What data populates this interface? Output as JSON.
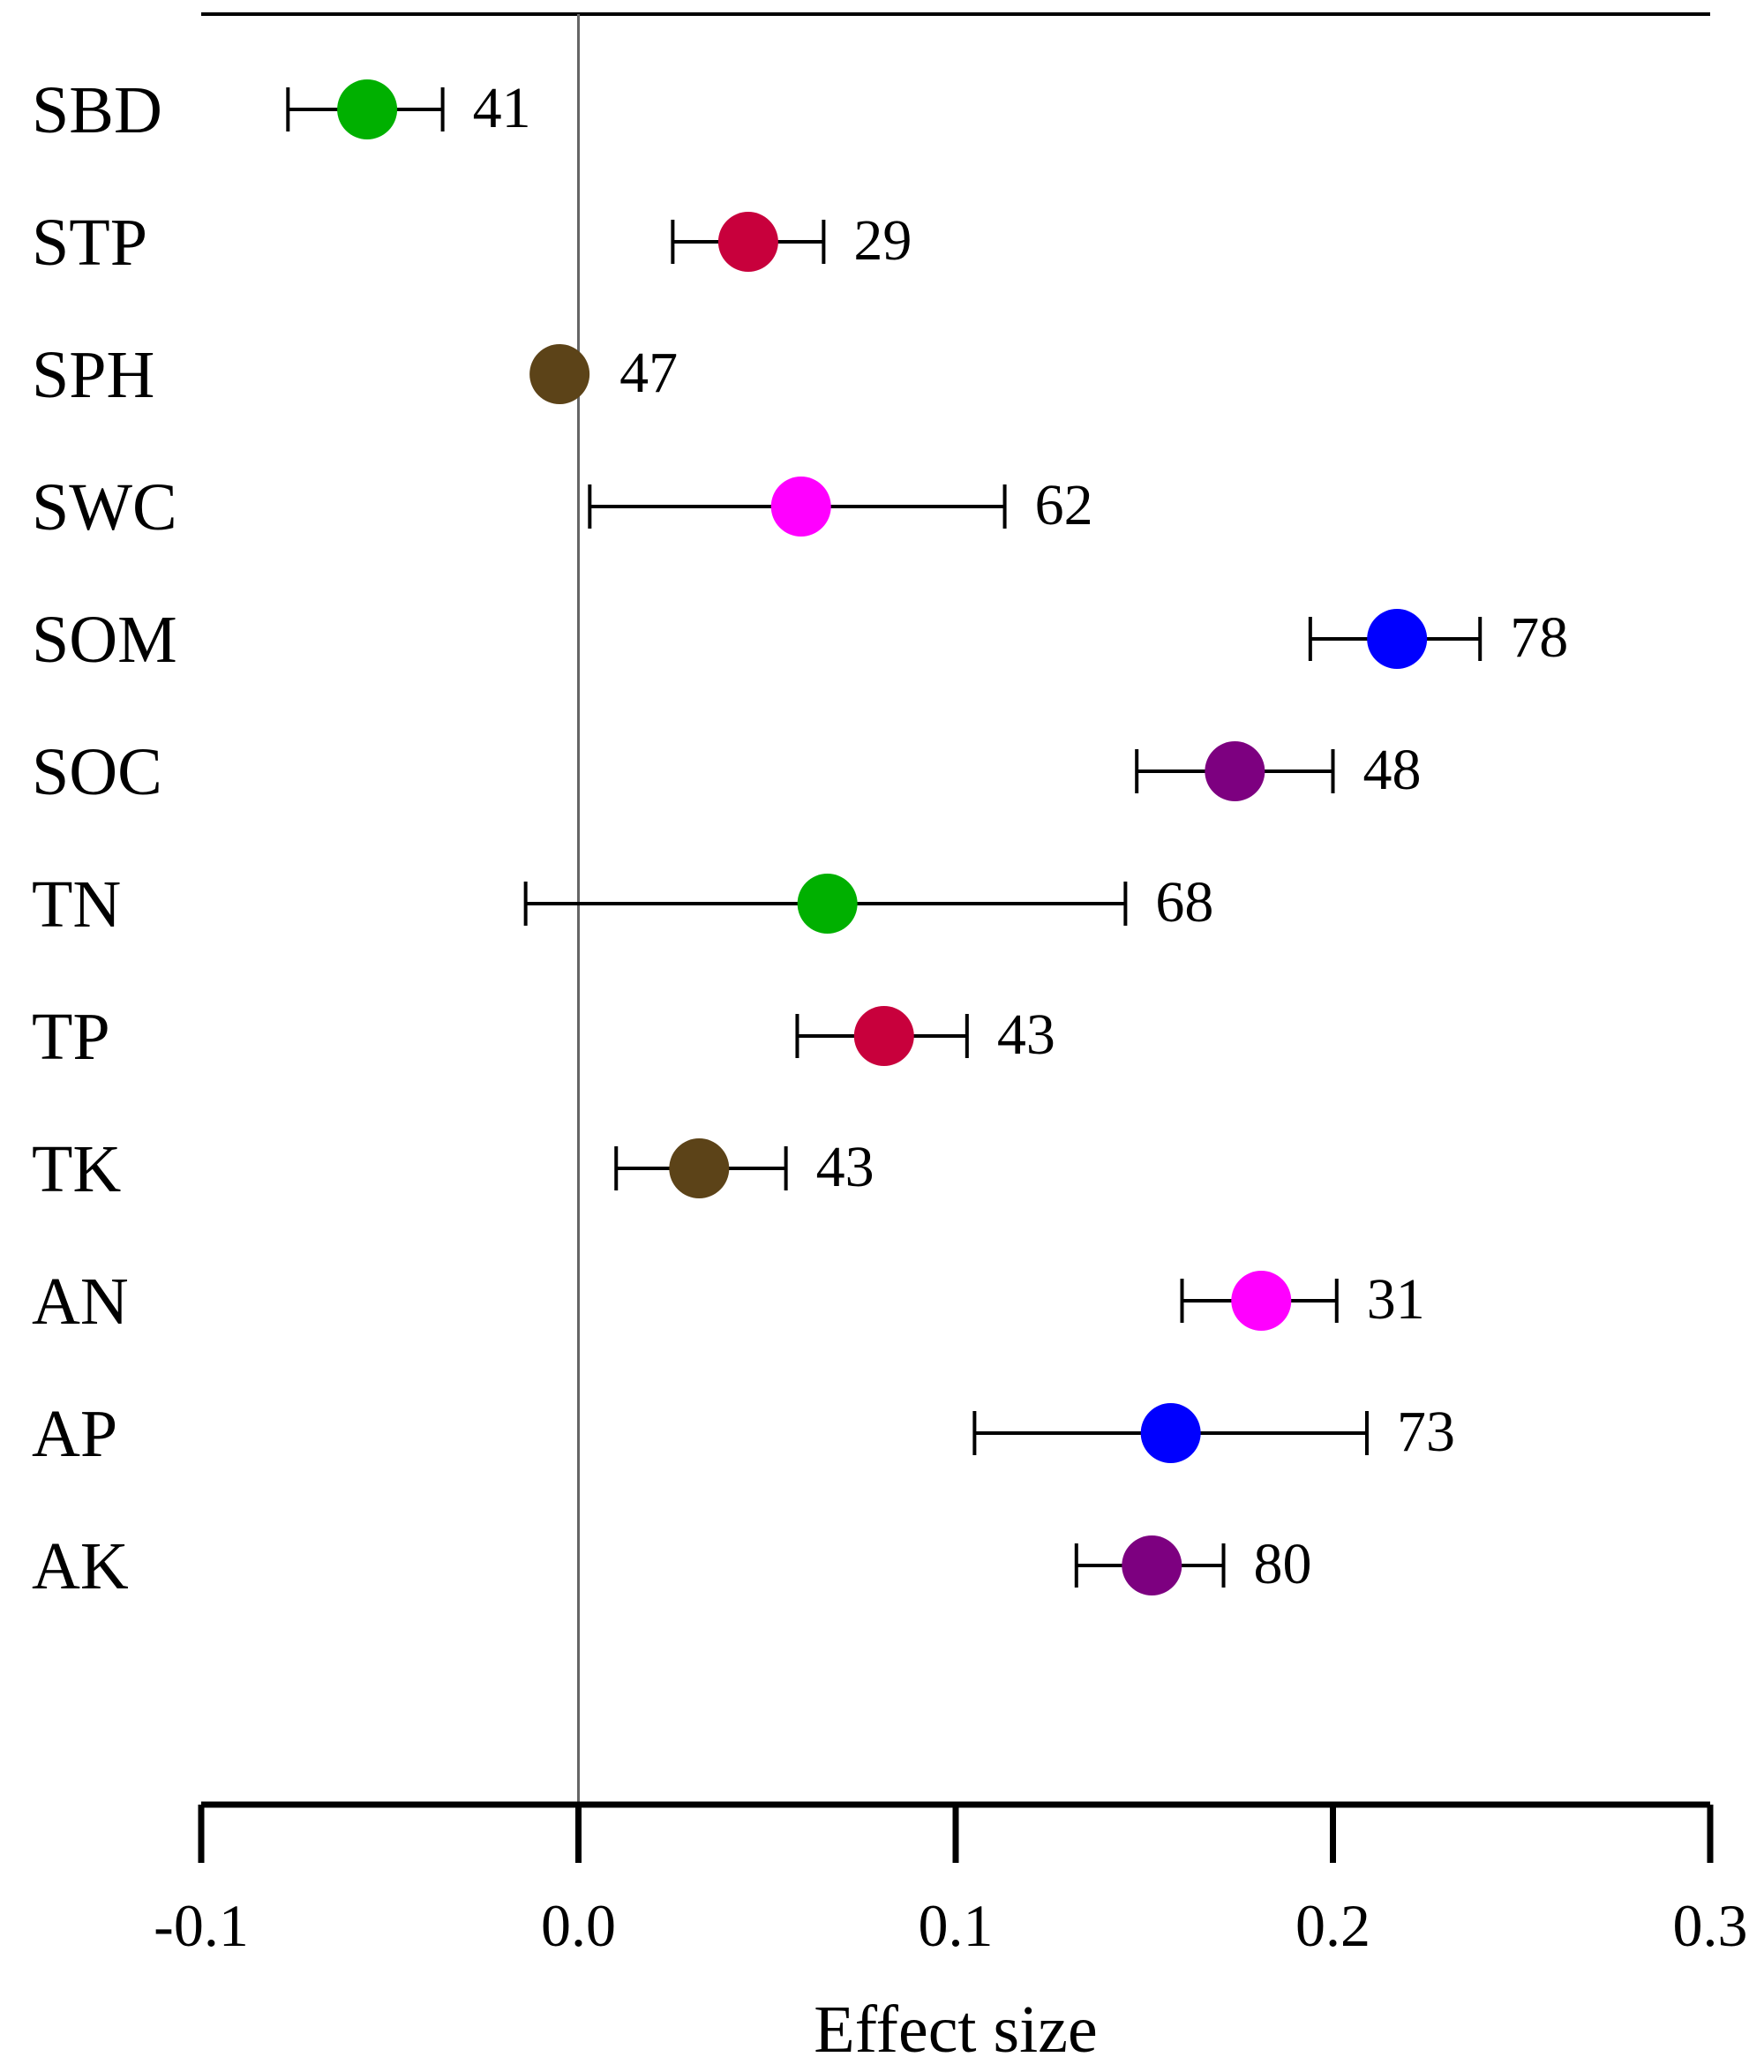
{
  "chart_data": {
    "type": "forest",
    "title": "",
    "xlabel": "Effect size",
    "ylabel": "",
    "xlim": [
      -0.1,
      0.3
    ],
    "xticks": [
      -0.1,
      0.0,
      0.1,
      0.2,
      0.3
    ],
    "xtick_labels": [
      "-0.1",
      "0.0",
      "0.1",
      "0.2",
      "0.3"
    ],
    "zero_line": 0.0,
    "rows": [
      {
        "label": "SBD",
        "mean": -0.056,
        "lower": -0.077,
        "upper": -0.036,
        "n": "41",
        "color": "#00b000"
      },
      {
        "label": "STP",
        "mean": 0.045,
        "lower": 0.025,
        "upper": 0.065,
        "n": "29",
        "color": "#c8003c"
      },
      {
        "label": "SPH",
        "mean": -0.005,
        "lower": -0.005,
        "upper": -0.005,
        "n": "47",
        "color": "#5c4318"
      },
      {
        "label": "SWC",
        "mean": 0.059,
        "lower": 0.003,
        "upper": 0.113,
        "n": "62",
        "color": "#ff00ff"
      },
      {
        "label": "SOM",
        "mean": 0.217,
        "lower": 0.194,
        "upper": 0.239,
        "n": "78",
        "color": "#0000ff"
      },
      {
        "label": "SOC",
        "mean": 0.174,
        "lower": 0.148,
        "upper": 0.2,
        "n": "48",
        "color": "#7d0080"
      },
      {
        "label": "TN",
        "mean": 0.066,
        "lower": -0.014,
        "upper": 0.145,
        "n": "68",
        "color": "#00b000"
      },
      {
        "label": "TP",
        "mean": 0.081,
        "lower": 0.058,
        "upper": 0.103,
        "n": "43",
        "color": "#c8003c"
      },
      {
        "label": "TK",
        "mean": 0.032,
        "lower": 0.01,
        "upper": 0.055,
        "n": "43",
        "color": "#5c4318"
      },
      {
        "label": "AN",
        "mean": 0.181,
        "lower": 0.16,
        "upper": 0.201,
        "n": "31",
        "color": "#ff00ff"
      },
      {
        "label": "AP",
        "mean": 0.157,
        "lower": 0.105,
        "upper": 0.209,
        "n": "73",
        "color": "#0000ff"
      },
      {
        "label": "AK",
        "mean": 0.152,
        "lower": 0.132,
        "upper": 0.171,
        "n": "80",
        "color": "#7d0080"
      }
    ]
  }
}
